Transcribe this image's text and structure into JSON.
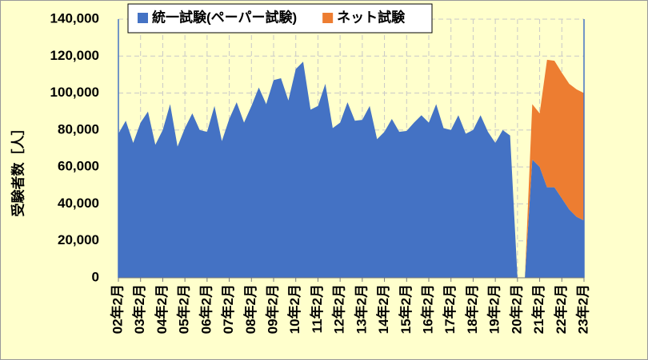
{
  "chart_data": {
    "type": "stacked_area",
    "y_label": "受験者数［人］",
    "categories": [
      "02年2月",
      null,
      null,
      "03年2月",
      null,
      null,
      "04年2月",
      null,
      null,
      "05年2月",
      null,
      null,
      "06年2月",
      null,
      null,
      "07年2月",
      null,
      null,
      "08年2月",
      null,
      null,
      "09年2月",
      null,
      null,
      "10年2月",
      null,
      null,
      "11年2月",
      null,
      null,
      "12年2月",
      null,
      null,
      "13年2月",
      null,
      null,
      "14年2月",
      null,
      null,
      "15年2月",
      null,
      null,
      "16年2月",
      null,
      null,
      "17年2月",
      null,
      null,
      "18年2月",
      null,
      null,
      "19年2月",
      null,
      null,
      "20年2月",
      null,
      null,
      "21年2月",
      null,
      null,
      "22年2月",
      null,
      null,
      "23年2月"
    ],
    "series": [
      {
        "name": "統一試験(ペーパー試験)",
        "color": "#4472c4",
        "values": [
          78000,
          85000,
          73000,
          84000,
          90000,
          72000,
          80000,
          94000,
          71000,
          81000,
          89000,
          80000,
          79000,
          93000,
          74000,
          86000,
          95000,
          84000,
          93000,
          103000,
          94000,
          107000,
          108000,
          96000,
          113000,
          117000,
          91000,
          93000,
          105000,
          81000,
          84000,
          95000,
          85000,
          85500,
          93000,
          75000,
          79000,
          86000,
          79000,
          79500,
          84000,
          88000,
          84000,
          94000,
          81000,
          80000,
          88000,
          78000,
          80000,
          88000,
          79000,
          73000,
          80000,
          77000,
          0,
          0,
          64000,
          60000,
          49000,
          49000,
          43000,
          37000,
          33000,
          31000
        ]
      },
      {
        "name": "ネット試験",
        "color": "#ed7d31",
        "values": [
          0,
          0,
          0,
          0,
          0,
          0,
          0,
          0,
          0,
          0,
          0,
          0,
          0,
          0,
          0,
          0,
          0,
          0,
          0,
          0,
          0,
          0,
          0,
          0,
          0,
          0,
          0,
          0,
          0,
          0,
          0,
          0,
          0,
          0,
          0,
          0,
          0,
          0,
          0,
          0,
          0,
          0,
          0,
          0,
          0,
          0,
          0,
          0,
          0,
          0,
          0,
          0,
          0,
          0,
          0,
          0,
          30000,
          29000,
          69000,
          68500,
          68000,
          68000,
          69000,
          69000
        ]
      }
    ],
    "ylim": [
      0,
      140000
    ],
    "yticks": [
      0,
      {
        "value": 20000,
        "label": "20,000"
      },
      {
        "value": 40000,
        "label": "40,000"
      },
      {
        "value": 60000,
        "label": "60,000"
      },
      {
        "value": 80000,
        "label": "80,000"
      },
      {
        "value": 100000,
        "label": "100,000"
      },
      {
        "value": 120000,
        "label": "120,000"
      },
      {
        "value": 140000,
        "label": "140,000"
      }
    ],
    "grid": true,
    "legend": "top"
  }
}
